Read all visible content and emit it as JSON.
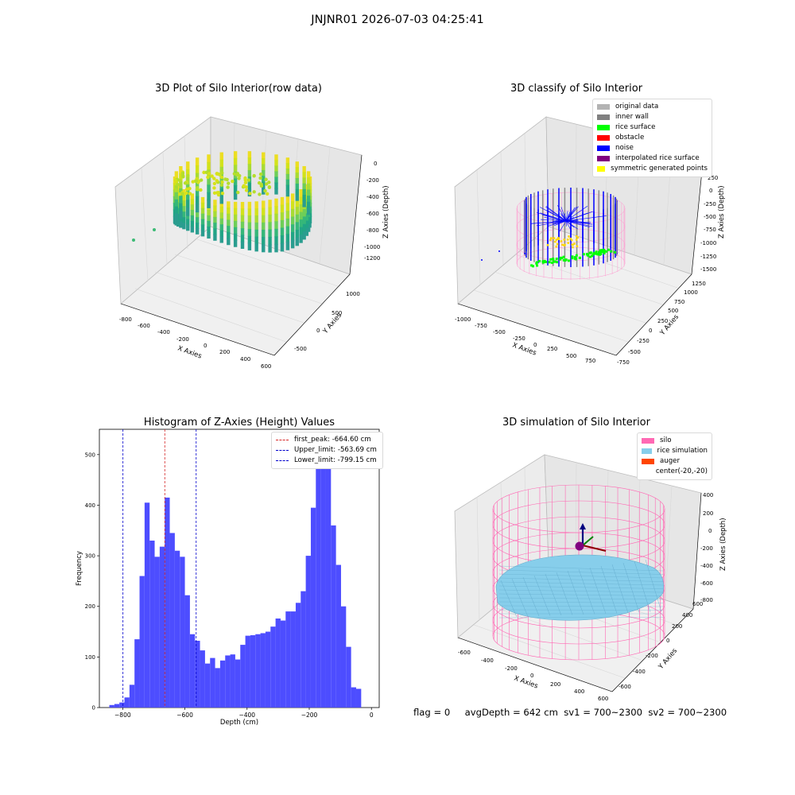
{
  "figure": {
    "suptitle": "JNJNR01 2026-07-03 04:25:41",
    "status": {
      "flag": "flag = 0",
      "avg_depth": "avgDepth = 642 cm",
      "sv1": "sv1 = 700~2300",
      "sv2": "sv2 = 700~2300"
    }
  },
  "colors": {
    "histogram_bar": "#4d4dff",
    "first_peak_line": "#d62728",
    "limit_line": "#0000cc",
    "original_data": "#b3b3b3",
    "inner_wall": "#808080",
    "rice_surface": "#00ff00",
    "obstacle": "#ff0000",
    "noise": "#0000ff",
    "interpolated_rice_surface": "#800080",
    "symmetric_generated_points": "#ffff00",
    "silo": "#ff69b4",
    "rice_simulation": "#87ceeb",
    "auger": "#ff4500"
  },
  "chart_data": [
    {
      "type": "scatter",
      "title": "3D Plot of Silo Interior(row data)",
      "xlabel": "X Axies",
      "ylabel": "Y Axies",
      "zlabel": "Z Axies (Depth)",
      "x_ticks": [
        "-800",
        "-600",
        "-400",
        "-200",
        "0",
        "200",
        "400",
        "600"
      ],
      "y_ticks": [
        "-500",
        "0",
        "500",
        "1000"
      ],
      "z_ticks": [
        "0",
        "-200",
        "-400",
        "-600",
        "-800",
        "-1000",
        "-1200"
      ],
      "colormap": "viridis"
    },
    {
      "type": "scatter",
      "title": "3D classify of Silo Interior",
      "xlabel": "X Axies",
      "ylabel": "Y Axies",
      "zlabel": "Z Axies (Depth)",
      "x_ticks": [
        "-1000",
        "-750",
        "-500",
        "-250",
        "0",
        "250",
        "500",
        "750"
      ],
      "y_ticks": [
        "-750",
        "-500",
        "-250",
        "0",
        "250",
        "500",
        "750",
        "1000",
        "1250"
      ],
      "z_ticks": [
        "250",
        "0",
        "-250",
        "-500",
        "-750",
        "-1000",
        "-1250",
        "-1500"
      ],
      "legend": [
        "original data",
        "inner wall",
        "rice surface",
        "obstacle",
        "noise",
        "interpolated rice surface",
        "symmetric generated points"
      ],
      "legend_position": "top-right"
    },
    {
      "type": "bar",
      "title": "Histogram of Z-Axies (Height) Values",
      "xlabel": "Depth (cm)",
      "ylabel": "Frequency",
      "xlim": [
        -875,
        25
      ],
      "ylim": [
        0,
        550
      ],
      "x_ticks": [
        -800,
        -600,
        -400,
        -200,
        0
      ],
      "y_ticks": [
        0,
        100,
        200,
        300,
        400,
        500
      ],
      "bin_width": 16.2,
      "bin_starts": [
        -843,
        -826.8,
        -810.6,
        -794.4,
        -778.2,
        -762,
        -745.8,
        -729.6,
        -713.4,
        -697.2,
        -681,
        -664.8,
        -648.6,
        -632.4,
        -616.2,
        -600,
        -583.8,
        -567.6,
        -551.4,
        -535.2,
        -519,
        -502.8,
        -486.6,
        -470.4,
        -454.2,
        -438,
        -421.8,
        -405.6,
        -389.4,
        -373.2,
        -357,
        -340.8,
        -324.6,
        -308.4,
        -292.2,
        -276,
        -259.8,
        -243.6,
        -227.4,
        -211.2,
        -195,
        -178.8,
        -162.6,
        -146.4,
        -130.2,
        -114,
        -97.8,
        -81.6,
        -65.4,
        -49.2,
        -33,
        -16.8
      ],
      "values": [
        5,
        7,
        10,
        20,
        45,
        135,
        260,
        405,
        330,
        298,
        318,
        415,
        345,
        310,
        298,
        222,
        145,
        132,
        113,
        87,
        98,
        78,
        93,
        103,
        105,
        95,
        124,
        142,
        143,
        145,
        147,
        150,
        160,
        176,
        172,
        190,
        190,
        207,
        230,
        300,
        395,
        490,
        530,
        475,
        360,
        282,
        200,
        120,
        40,
        37,
        0,
        0
      ],
      "vlines": [
        {
          "x": -664.6,
          "label": "first_peak: -664.60 cm"
        },
        {
          "x": -563.69,
          "label": "Upper_limit: -563.69 cm"
        },
        {
          "x": -799.15,
          "label": "Lower_limit: -799.15 cm"
        }
      ],
      "legend_position": "top-right"
    },
    {
      "type": "scatter",
      "title": "3D simulation of Silo Interior",
      "xlabel": "X Axies",
      "ylabel": "Y Axies",
      "zlabel": "Z Axies (Depth)",
      "x_ticks": [
        "-600",
        "-400",
        "-200",
        "0",
        "200",
        "400",
        "600"
      ],
      "y_ticks": [
        "-600",
        "-400",
        "-200",
        "0",
        "200",
        "400",
        "600"
      ],
      "z_ticks": [
        "400",
        "200",
        "0",
        "-200",
        "-400",
        "-600",
        "-800"
      ],
      "legend": [
        "silo",
        "rice simulation",
        "auger",
        "center(-20,-20)"
      ],
      "legend_position": "top-right"
    }
  ]
}
